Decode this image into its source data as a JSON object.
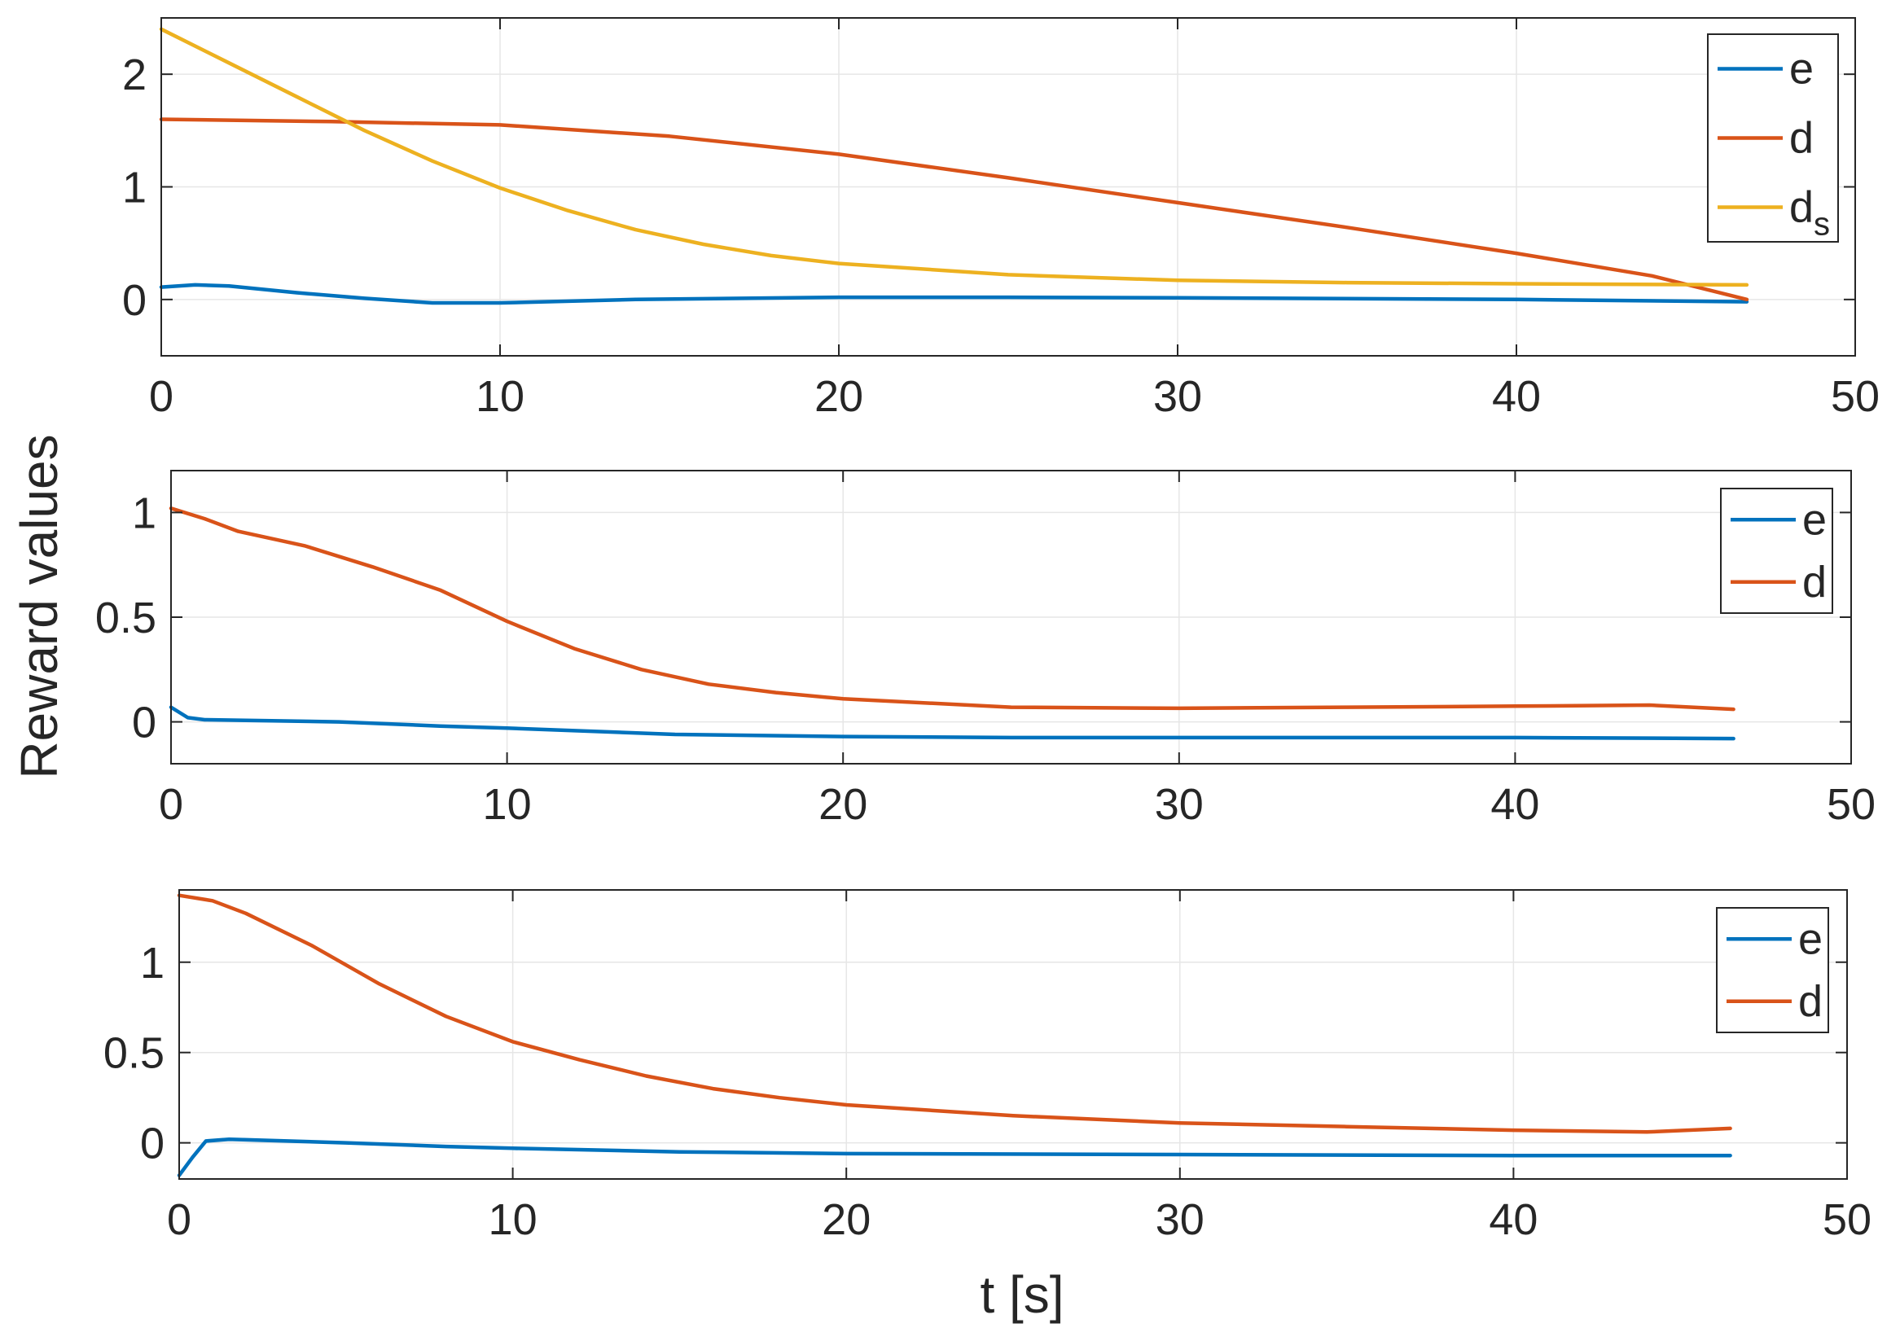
{
  "figure": {
    "ylabel": "Reward values",
    "xlabel": "t [s]"
  },
  "colors": {
    "e": "#0072BD",
    "d": "#D95319",
    "ds": "#EDB120",
    "grid": "#E6E6E6",
    "axis": "#262626"
  },
  "chart_data": [
    {
      "type": "line",
      "grid": true,
      "legend_position": "top-right",
      "xlim": [
        0,
        50
      ],
      "ylim": [
        -0.5,
        2.5
      ],
      "xticks": [
        0,
        10,
        20,
        30,
        40,
        50
      ],
      "yticks": [
        0,
        1,
        2
      ],
      "xtick_labels": [
        "0",
        "10",
        "20",
        "30",
        "40",
        "50"
      ],
      "ytick_labels": [
        "0",
        "1",
        "2"
      ],
      "series": [
        {
          "name": "e",
          "color_key": "e",
          "points": [
            [
              0,
              0.11
            ],
            [
              1,
              0.13
            ],
            [
              2,
              0.12
            ],
            [
              4,
              0.06
            ],
            [
              6,
              0.01
            ],
            [
              8,
              -0.03
            ],
            [
              10,
              -0.03
            ],
            [
              14,
              0.0
            ],
            [
              20,
              0.02
            ],
            [
              25,
              0.02
            ],
            [
              30,
              0.015
            ],
            [
              40,
              0.0
            ],
            [
              46.8,
              -0.02
            ]
          ]
        },
        {
          "name": "d",
          "color_key": "d",
          "points": [
            [
              0,
              1.6
            ],
            [
              5,
              1.58
            ],
            [
              10,
              1.55
            ],
            [
              15,
              1.45
            ],
            [
              20,
              1.29
            ],
            [
              25,
              1.08
            ],
            [
              30,
              0.86
            ],
            [
              35,
              0.64
            ],
            [
              40,
              0.41
            ],
            [
              44,
              0.21
            ],
            [
              46.8,
              0.0
            ]
          ]
        },
        {
          "name": "d",
          "name_sub": "s",
          "color_key": "ds",
          "points": [
            [
              0,
              2.4
            ],
            [
              2,
              2.1
            ],
            [
              4,
              1.8
            ],
            [
              6,
              1.5
            ],
            [
              8,
              1.23
            ],
            [
              10,
              0.99
            ],
            [
              12,
              0.79
            ],
            [
              14,
              0.62
            ],
            [
              16,
              0.49
            ],
            [
              18,
              0.39
            ],
            [
              20,
              0.32
            ],
            [
              25,
              0.22
            ],
            [
              30,
              0.17
            ],
            [
              35,
              0.15
            ],
            [
              40,
              0.14
            ],
            [
              46.8,
              0.13
            ]
          ]
        }
      ]
    },
    {
      "type": "line",
      "grid": true,
      "legend_position": "top-right",
      "xlim": [
        0,
        50
      ],
      "ylim": [
        -0.2,
        1.2
      ],
      "xticks": [
        0,
        10,
        20,
        30,
        40,
        50
      ],
      "yticks": [
        0,
        0.5,
        1
      ],
      "xtick_labels": [
        "0",
        "10",
        "20",
        "30",
        "40",
        "50"
      ],
      "ytick_labels": [
        "0",
        "0.5",
        "1"
      ],
      "series": [
        {
          "name": "e",
          "color_key": "e",
          "points": [
            [
              0,
              0.07
            ],
            [
              0.5,
              0.02
            ],
            [
              1,
              0.01
            ],
            [
              5,
              0.0
            ],
            [
              8,
              -0.02
            ],
            [
              10,
              -0.03
            ],
            [
              15,
              -0.06
            ],
            [
              20,
              -0.07
            ],
            [
              25,
              -0.075
            ],
            [
              30,
              -0.075
            ],
            [
              40,
              -0.075
            ],
            [
              46.5,
              -0.08
            ]
          ]
        },
        {
          "name": "d",
          "color_key": "d",
          "points": [
            [
              0,
              1.02
            ],
            [
              1,
              0.97
            ],
            [
              2,
              0.91
            ],
            [
              4,
              0.84
            ],
            [
              6,
              0.74
            ],
            [
              8,
              0.63
            ],
            [
              10,
              0.48
            ],
            [
              12,
              0.35
            ],
            [
              14,
              0.25
            ],
            [
              16,
              0.18
            ],
            [
              18,
              0.14
            ],
            [
              20,
              0.11
            ],
            [
              25,
              0.07
            ],
            [
              30,
              0.065
            ],
            [
              35,
              0.07
            ],
            [
              40,
              0.075
            ],
            [
              44,
              0.08
            ],
            [
              46.5,
              0.06
            ]
          ]
        }
      ]
    },
    {
      "type": "line",
      "grid": true,
      "legend_position": "top-right",
      "xlim": [
        0,
        50
      ],
      "ylim": [
        -0.2,
        1.4
      ],
      "xticks": [
        0,
        10,
        20,
        30,
        40,
        50
      ],
      "yticks": [
        0,
        0.5,
        1
      ],
      "xtick_labels": [
        "0",
        "10",
        "20",
        "30",
        "40",
        "50"
      ],
      "ytick_labels": [
        "0",
        "0.5",
        "1"
      ],
      "series": [
        {
          "name": "e",
          "color_key": "e",
          "points": [
            [
              0,
              -0.18
            ],
            [
              0.4,
              -0.08
            ],
            [
              0.8,
              0.01
            ],
            [
              1.5,
              0.02
            ],
            [
              5,
              0.0
            ],
            [
              8,
              -0.02
            ],
            [
              10,
              -0.03
            ],
            [
              15,
              -0.05
            ],
            [
              20,
              -0.06
            ],
            [
              30,
              -0.065
            ],
            [
              40,
              -0.07
            ],
            [
              46.5,
              -0.07
            ]
          ]
        },
        {
          "name": "d",
          "color_key": "d",
          "points": [
            [
              0,
              1.37
            ],
            [
              1,
              1.34
            ],
            [
              2,
              1.27
            ],
            [
              4,
              1.09
            ],
            [
              6,
              0.88
            ],
            [
              8,
              0.7
            ],
            [
              10,
              0.56
            ],
            [
              12,
              0.46
            ],
            [
              14,
              0.37
            ],
            [
              16,
              0.3
            ],
            [
              18,
              0.25
            ],
            [
              20,
              0.21
            ],
            [
              25,
              0.15
            ],
            [
              30,
              0.11
            ],
            [
              35,
              0.09
            ],
            [
              40,
              0.07
            ],
            [
              44,
              0.06
            ],
            [
              46.5,
              0.08
            ]
          ]
        }
      ]
    }
  ]
}
